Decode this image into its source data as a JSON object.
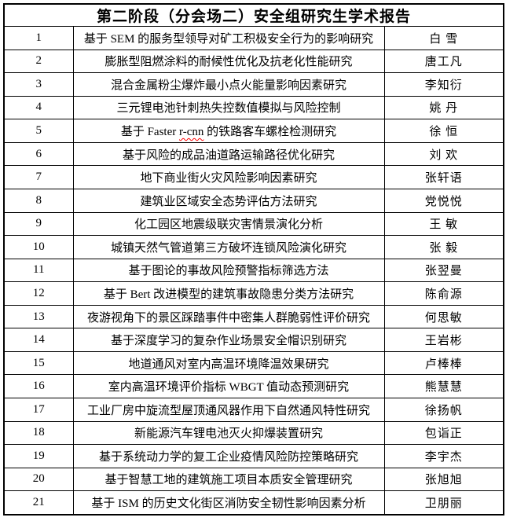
{
  "table": {
    "title": "第二阶段（分会场二）安全组研究生学术报告",
    "rows": [
      {
        "no": "1",
        "title": "基于 SEM 的服务型领导对矿工积极安全行为的影响研究",
        "name": "白 雪"
      },
      {
        "no": "2",
        "title": "膨胀型阻燃涂料的耐候性优化及抗老化性能研究",
        "name": "唐工凡"
      },
      {
        "no": "3",
        "title": "混合金属粉尘爆炸最小点火能量影响因素研究",
        "name": "李知衍"
      },
      {
        "no": "4",
        "title": "三元锂电池针刺热失控数值模拟与风险控制",
        "name": "姚 丹"
      },
      {
        "no": "5",
        "title": "基于 Faster r-cnn 的铁路客车螺栓检测研究",
        "name": "徐 恒",
        "misspelled": "r-cnn"
      },
      {
        "no": "6",
        "title": "基于风险的成品油道路运输路径优化研究",
        "name": "刘 欢"
      },
      {
        "no": "7",
        "title": "地下商业街火灾风险影响因素研究",
        "name": "张轩语"
      },
      {
        "no": "8",
        "title": "建筑业区域安全态势评估方法研究",
        "name": "党悦悦"
      },
      {
        "no": "9",
        "title": "化工园区地震级联灾害情景演化分析",
        "name": "王 敏"
      },
      {
        "no": "10",
        "title": "城镇天然气管道第三方破坏连锁风险演化研究",
        "name": "张 毅"
      },
      {
        "no": "11",
        "title": "基于图论的事故风险预警指标筛选方法",
        "name": "张翌曼"
      },
      {
        "no": "12",
        "title": "基于 Bert 改进模型的建筑事故隐患分类方法研究",
        "name": "陈俞源"
      },
      {
        "no": "13",
        "title": "夜游视角下的景区踩踏事件中密集人群脆弱性评价研究",
        "name": "何思敏"
      },
      {
        "no": "14",
        "title": "基于深度学习的复杂作业场景安全帽识别研究",
        "name": "王岩彬"
      },
      {
        "no": "15",
        "title": "地道通风对室内高温环境降温效果研究",
        "name": "卢棒棒"
      },
      {
        "no": "16",
        "title": "室内高温环境评价指标 WBGT 值动态预测研究",
        "name": "熊慧慧"
      },
      {
        "no": "17",
        "title": "工业厂房中旋流型屋顶通风器作用下自然通风特性研究",
        "name": "徐扬帆"
      },
      {
        "no": "18",
        "title": "新能源汽车锂电池灭火抑爆装置研究",
        "name": "包诣正"
      },
      {
        "no": "19",
        "title": "基于系统动力学的复工企业疫情风险防控策略研究",
        "name": "李宇杰"
      },
      {
        "no": "20",
        "title": "基于智慧工地的建筑施工项目本质安全管理研究",
        "name": "张旭旭"
      },
      {
        "no": "21",
        "title": "基于 ISM 的历史文化街区消防安全韧性影响因素分析",
        "name": "卫朋丽"
      }
    ],
    "colors": {
      "border": "#000000",
      "text": "#000000",
      "spellcheck_underline": "#ff0000",
      "background": "#ffffff"
    }
  }
}
